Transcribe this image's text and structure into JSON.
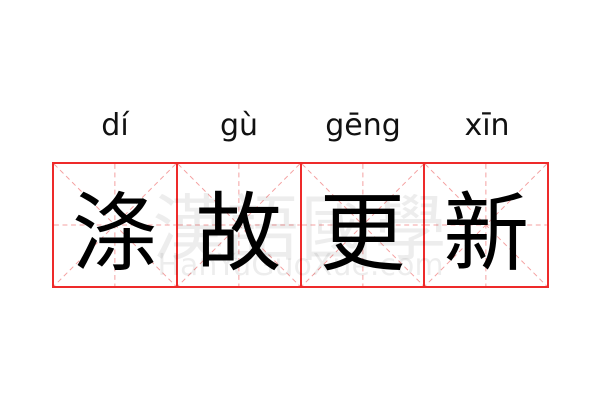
{
  "pinyin": [
    "dí",
    "gù",
    "gēng",
    "xīn"
  ],
  "characters": [
    "涤",
    "故",
    "更",
    "新"
  ],
  "watermark": {
    "chinese": "漢語國學",
    "latin": "HanYuGuoXue.com"
  },
  "colors": {
    "grid_border": "#ee2a2a",
    "guide_lines": "#f4a0a0",
    "text": "#000000"
  }
}
